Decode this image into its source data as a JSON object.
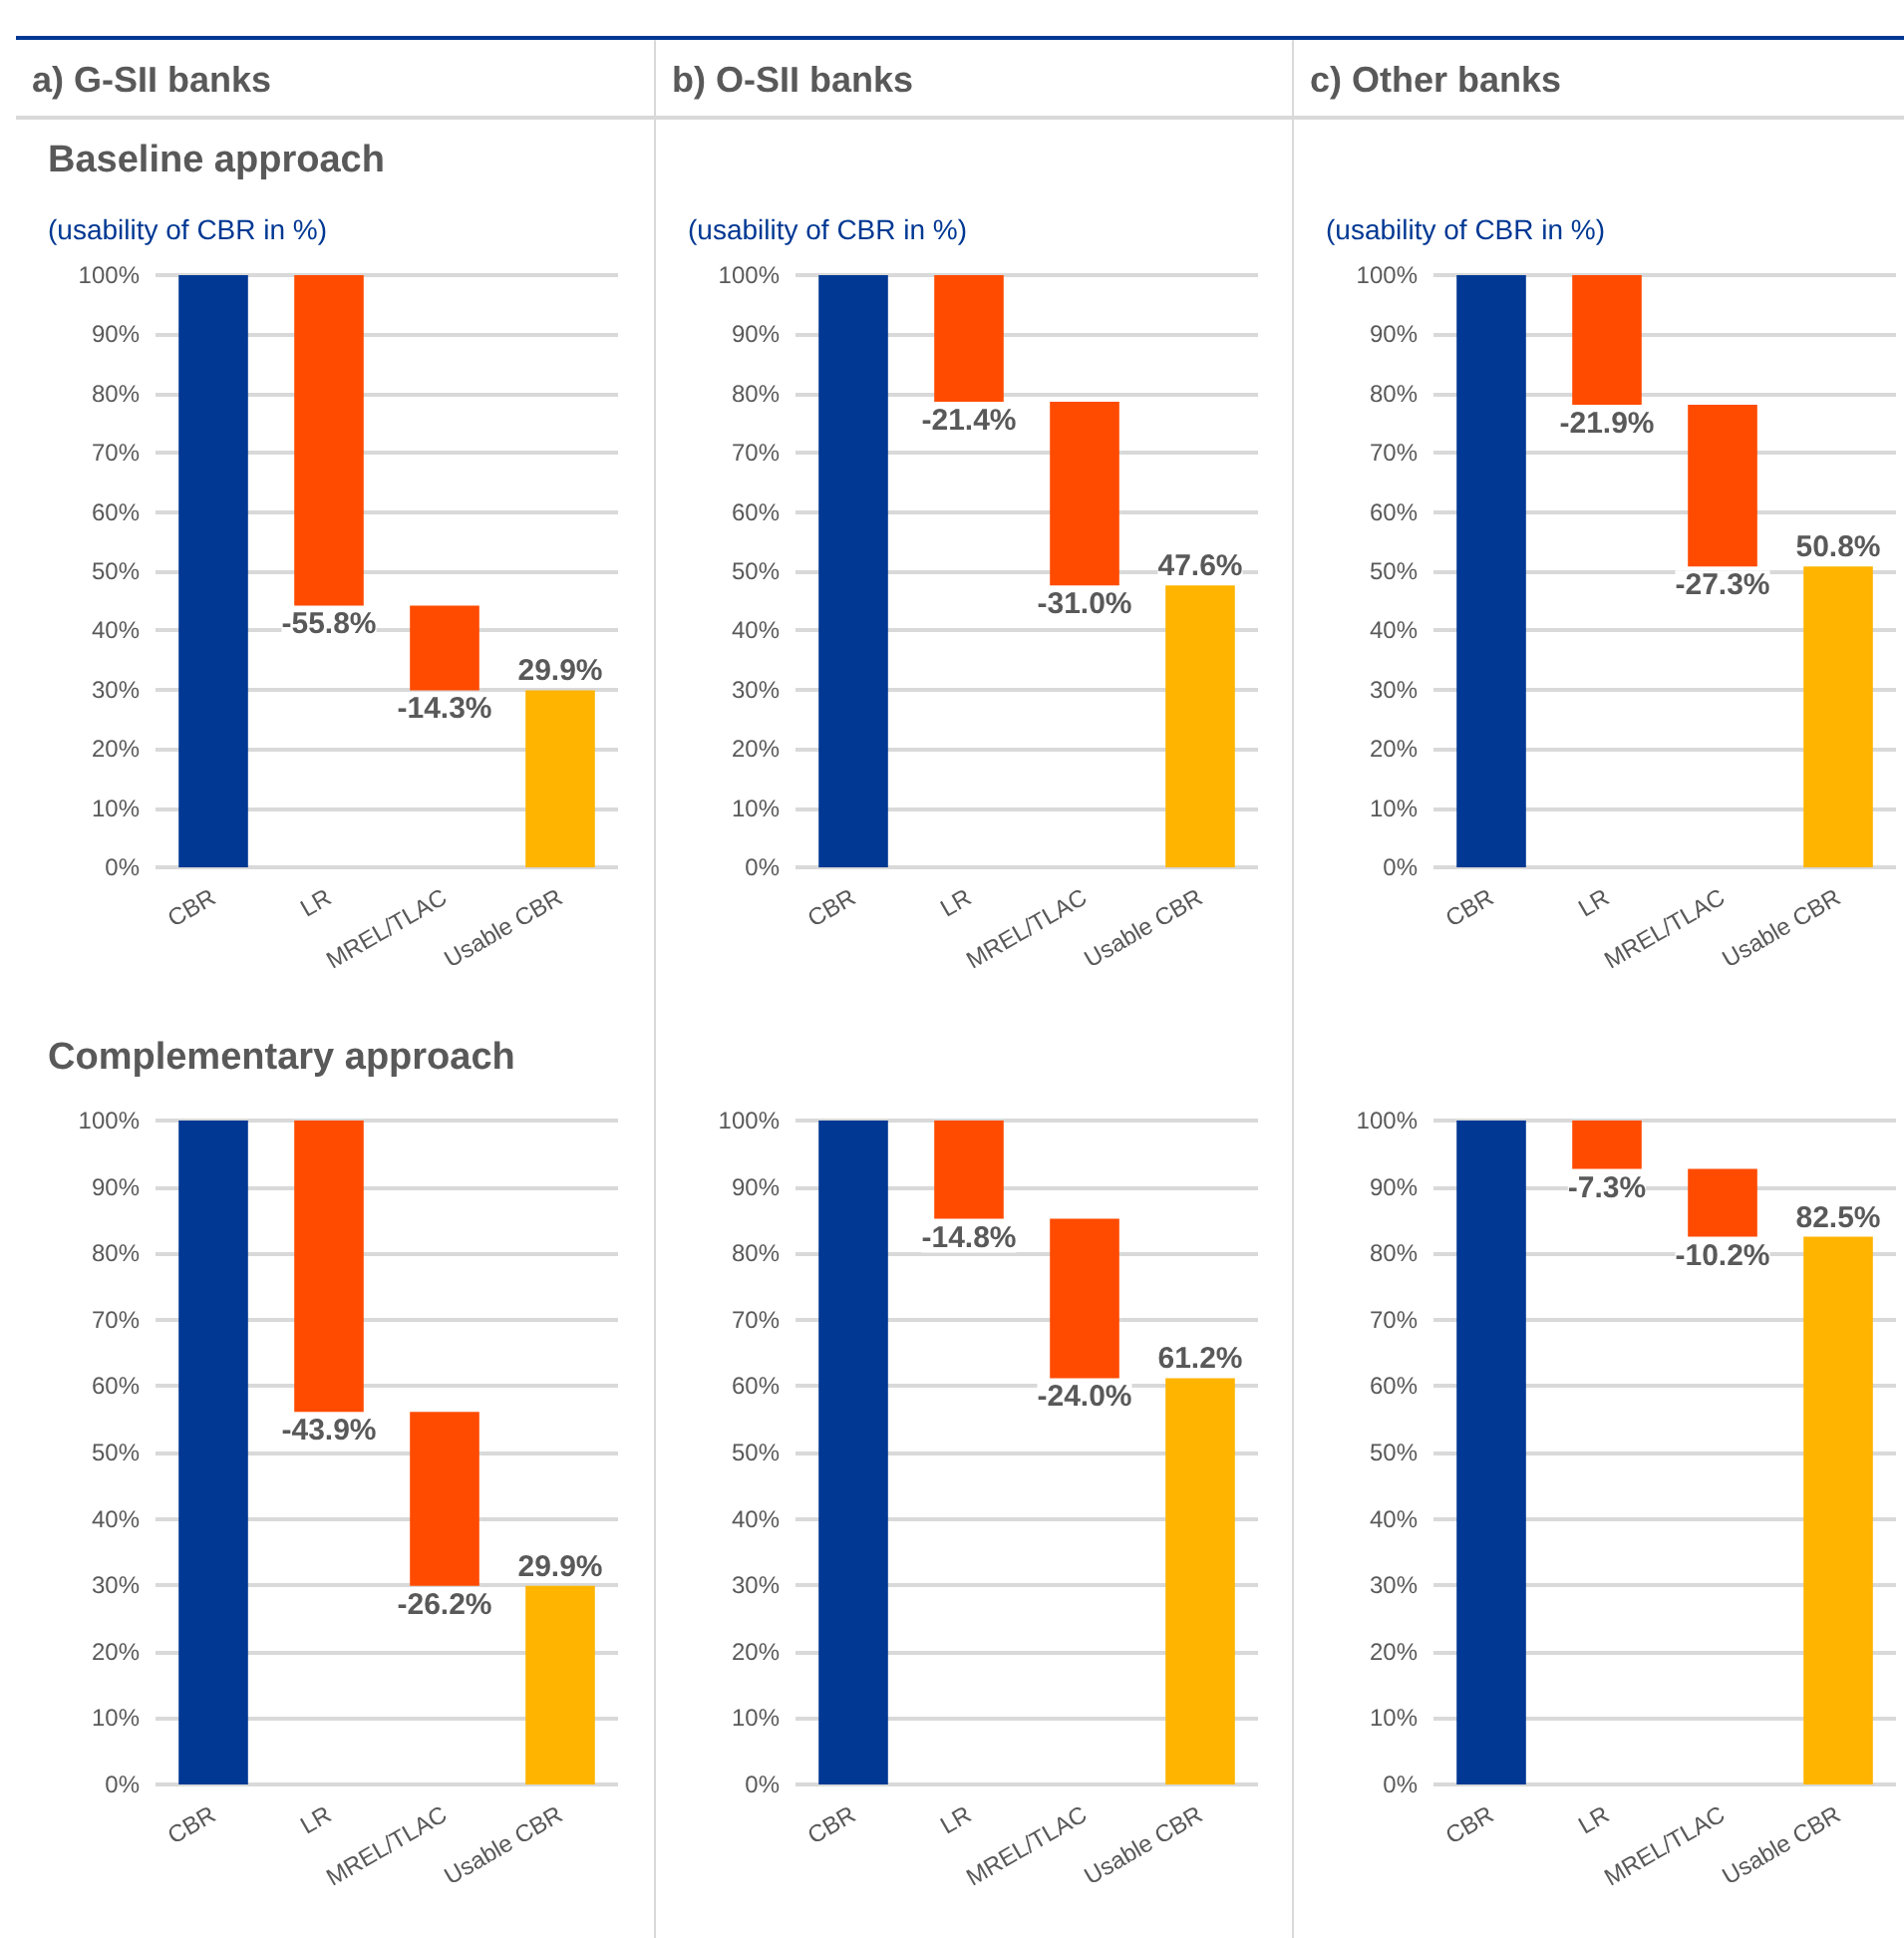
{
  "chart_data": [
    {
      "type": "bar",
      "title": "a) G-SII banks",
      "subtitle": "Baseline approach",
      "ylabel": "(usability of CBR in %)",
      "categories": [
        "CBR",
        "LR",
        "MREL/TLAC",
        "Usable CBR"
      ],
      "values": [
        100,
        -55.8,
        -14.3,
        29.9
      ],
      "base": [
        0,
        100,
        44.2,
        0
      ],
      "colors": [
        "#003893",
        "#ff4b00",
        "#ff4b00",
        "#ffb400"
      ],
      "value_labels": [
        null,
        "-55.8%",
        "-14.3%",
        "29.9%"
      ],
      "ylim": [
        0,
        100
      ],
      "yticks": [
        {
          "value": 0,
          "label": "0%"
        },
        {
          "value": 10,
          "label": "10%"
        },
        {
          "value": 20,
          "label": "20%"
        },
        {
          "value": 30,
          "label": "30%"
        },
        {
          "value": 40,
          "label": "40%"
        },
        {
          "value": 50,
          "label": "50%"
        },
        {
          "value": 60,
          "label": "60%"
        },
        {
          "value": 70,
          "label": "70%"
        },
        {
          "value": 80,
          "label": "80%"
        },
        {
          "value": 90,
          "label": "90%"
        },
        {
          "value": 100,
          "label": "100%"
        }
      ],
      "grid": "y"
    },
    {
      "type": "bar",
      "title": "b) O-SII banks",
      "ylabel": "(usability of CBR in %)",
      "categories": [
        "CBR",
        "LR",
        "MREL/TLAC",
        "Usable CBR"
      ],
      "values": [
        100,
        -21.4,
        -31.0,
        47.6
      ],
      "base": [
        0,
        100,
        78.6,
        0
      ],
      "colors": [
        "#003893",
        "#ff4b00",
        "#ff4b00",
        "#ffb400"
      ],
      "value_labels": [
        null,
        "-21.4%",
        "-31.0%",
        "47.6%"
      ],
      "ylim": [
        0,
        100
      ],
      "yticks": [
        {
          "value": 0,
          "label": "0%"
        },
        {
          "value": 10,
          "label": "10%"
        },
        {
          "value": 20,
          "label": "20%"
        },
        {
          "value": 30,
          "label": "30%"
        },
        {
          "value": 40,
          "label": "40%"
        },
        {
          "value": 50,
          "label": "50%"
        },
        {
          "value": 60,
          "label": "60%"
        },
        {
          "value": 70,
          "label": "70%"
        },
        {
          "value": 80,
          "label": "80%"
        },
        {
          "value": 90,
          "label": "90%"
        },
        {
          "value": 100,
          "label": "100%"
        }
      ],
      "grid": "y"
    },
    {
      "type": "bar",
      "title": "c) Other banks",
      "ylabel": "(usability of CBR in %)",
      "categories": [
        "CBR",
        "LR",
        "MREL/TLAC",
        "Usable CBR"
      ],
      "values": [
        100,
        -21.9,
        -27.3,
        50.8
      ],
      "base": [
        0,
        100,
        78.1,
        0
      ],
      "colors": [
        "#003893",
        "#ff4b00",
        "#ff4b00",
        "#ffb400"
      ],
      "value_labels": [
        null,
        "-21.9%",
        "-27.3%",
        "50.8%"
      ],
      "ylim": [
        0,
        100
      ],
      "yticks": [
        {
          "value": 0,
          "label": "0%"
        },
        {
          "value": 10,
          "label": "10%"
        },
        {
          "value": 20,
          "label": "20%"
        },
        {
          "value": 30,
          "label": "30%"
        },
        {
          "value": 40,
          "label": "40%"
        },
        {
          "value": 50,
          "label": "50%"
        },
        {
          "value": 60,
          "label": "60%"
        },
        {
          "value": 70,
          "label": "70%"
        },
        {
          "value": 80,
          "label": "80%"
        },
        {
          "value": 90,
          "label": "90%"
        },
        {
          "value": 100,
          "label": "100%"
        }
      ],
      "grid": "y"
    },
    {
      "type": "bar",
      "subtitle": "Complementary approach",
      "categories": [
        "CBR",
        "LR",
        "MREL/TLAC",
        "Usable CBR"
      ],
      "values": [
        100,
        -43.9,
        -26.2,
        29.9
      ],
      "base": [
        0,
        100,
        56.1,
        0
      ],
      "colors": [
        "#003893",
        "#ff4b00",
        "#ff4b00",
        "#ffb400"
      ],
      "value_labels": [
        null,
        "-43.9%",
        "-26.2%",
        "29.9%"
      ],
      "ylim": [
        0,
        100
      ],
      "yticks": [
        {
          "value": 0,
          "label": "0%"
        },
        {
          "value": 10,
          "label": "10%"
        },
        {
          "value": 20,
          "label": "20%"
        },
        {
          "value": 30,
          "label": "30%"
        },
        {
          "value": 40,
          "label": "40%"
        },
        {
          "value": 50,
          "label": "50%"
        },
        {
          "value": 60,
          "label": "60%"
        },
        {
          "value": 70,
          "label": "70%"
        },
        {
          "value": 80,
          "label": "80%"
        },
        {
          "value": 90,
          "label": "90%"
        },
        {
          "value": 100,
          "label": "100%"
        }
      ],
      "grid": "y"
    },
    {
      "type": "bar",
      "categories": [
        "CBR",
        "LR",
        "MREL/TLAC",
        "Usable CBR"
      ],
      "values": [
        100,
        -14.8,
        -24.0,
        61.2
      ],
      "base": [
        0,
        100,
        85.2,
        0
      ],
      "colors": [
        "#003893",
        "#ff4b00",
        "#ff4b00",
        "#ffb400"
      ],
      "value_labels": [
        null,
        "-14.8%",
        "-24.0%",
        "61.2%"
      ],
      "ylim": [
        0,
        100
      ],
      "yticks": [
        {
          "value": 0,
          "label": "0%"
        },
        {
          "value": 10,
          "label": "10%"
        },
        {
          "value": 20,
          "label": "20%"
        },
        {
          "value": 30,
          "label": "30%"
        },
        {
          "value": 40,
          "label": "40%"
        },
        {
          "value": 50,
          "label": "50%"
        },
        {
          "value": 60,
          "label": "60%"
        },
        {
          "value": 70,
          "label": "70%"
        },
        {
          "value": 80,
          "label": "80%"
        },
        {
          "value": 90,
          "label": "90%"
        },
        {
          "value": 100,
          "label": "100%"
        }
      ],
      "grid": "y"
    },
    {
      "type": "bar",
      "categories": [
        "CBR",
        "LR",
        "MREL/TLAC",
        "Usable CBR"
      ],
      "values": [
        100,
        -7.3,
        -10.2,
        82.5
      ],
      "base": [
        0,
        100,
        92.7,
        0
      ],
      "colors": [
        "#003893",
        "#ff4b00",
        "#ff4b00",
        "#ffb400"
      ],
      "value_labels": [
        null,
        "-7.3%",
        "-10.2%",
        "82.5%"
      ],
      "ylim": [
        0,
        100
      ],
      "yticks": [
        {
          "value": 0,
          "label": "0%"
        },
        {
          "value": 10,
          "label": "10%"
        },
        {
          "value": 20,
          "label": "20%"
        },
        {
          "value": 30,
          "label": "30%"
        },
        {
          "value": 40,
          "label": "40%"
        },
        {
          "value": 50,
          "label": "50%"
        },
        {
          "value": 60,
          "label": "60%"
        },
        {
          "value": 70,
          "label": "70%"
        },
        {
          "value": 80,
          "label": "80%"
        },
        {
          "value": 90,
          "label": "90%"
        },
        {
          "value": 100,
          "label": "100%"
        }
      ],
      "grid": "y"
    }
  ]
}
